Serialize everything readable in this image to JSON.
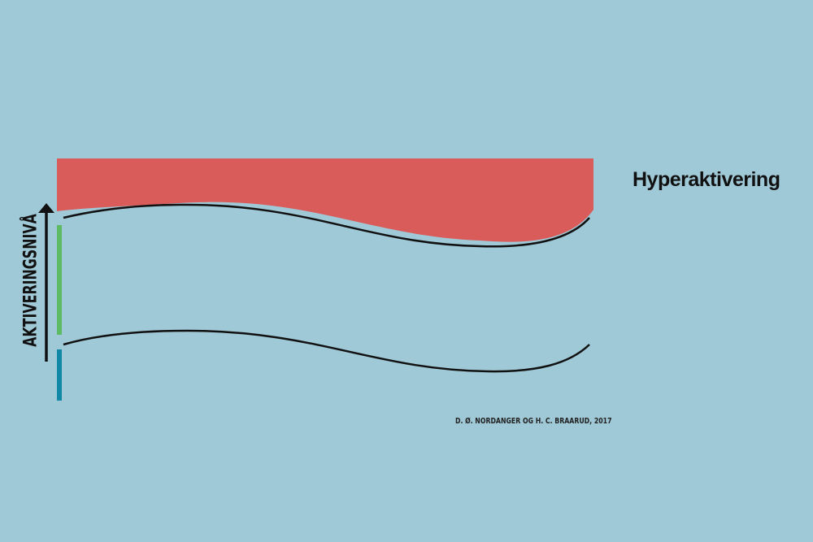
{
  "diagram": {
    "zone_label": "Hyperaktivering",
    "axis_label": "AKTIVERINGSNIVÅ",
    "credit": "D. Ø. NORDANGER OG H. C. BRAARUD, 2017",
    "colors": {
      "background": "#9fc9d7",
      "hyper_zone": "#d95c5b",
      "middle_bar": "#5dbb63",
      "low_bar": "#1187a6",
      "lines": "#111111"
    }
  }
}
